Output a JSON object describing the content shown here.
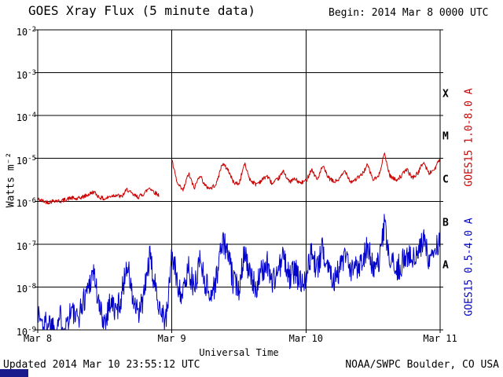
{
  "header": {
    "title": "GOES Xray Flux (5 minute data)",
    "begin_label": "Begin:  2014 Mar 8 0000 UTC"
  },
  "footer": {
    "updated": "Updated 2014 Mar 10 23:55:12 UTC",
    "source": "NOAA/SWPC Boulder, CO USA"
  },
  "chart_data": {
    "type": "line",
    "title": "GOES Xray Flux (5 minute data)",
    "xlabel": "Universal Time",
    "ylabel": "Watts m⁻²",
    "x_ticks": [
      "Mar 8",
      "Mar 9",
      "Mar 10",
      "Mar 11"
    ],
    "x_tick_hours": [
      0,
      24,
      48,
      72
    ],
    "x_range_hours": [
      0,
      72
    ],
    "y_log_range": [
      -9,
      -2
    ],
    "y_tick_exponents": [
      -2,
      -3,
      -4,
      -5,
      -6,
      -7,
      -8,
      -9
    ],
    "grid": "on",
    "sample_step_hours": 0.0833333,
    "flare_classes": [
      {
        "label": "X",
        "log_center": -3.5
      },
      {
        "label": "M",
        "log_center": -4.5
      },
      {
        "label": "C",
        "log_center": -5.5
      },
      {
        "label": "B",
        "log_center": -6.5
      },
      {
        "label": "A",
        "log_center": -7.5
      }
    ],
    "series": [
      {
        "name": "GOES15 1.0-8.0 A",
        "color": "#cc0000",
        "step_hours": 1,
        "noise_log": 0.05,
        "seed": 42,
        "gaps_hours": [
          [
            21.7,
            23.95
          ]
        ],
        "log_values": [
          -5.95,
          -6.0,
          -6.02,
          -5.98,
          -6.0,
          -5.96,
          -5.92,
          -5.95,
          -5.9,
          -5.85,
          -5.78,
          -5.9,
          -5.95,
          -5.88,
          -5.85,
          -5.9,
          -5.72,
          -5.85,
          -5.9,
          -5.82,
          -5.68,
          -5.8,
          -5.88,
          -5.9,
          -5.05,
          -5.6,
          -5.75,
          -5.35,
          -5.7,
          -5.38,
          -5.65,
          -5.7,
          -5.58,
          -5.12,
          -5.25,
          -5.55,
          -5.6,
          -5.12,
          -5.5,
          -5.6,
          -5.52,
          -5.4,
          -5.6,
          -5.48,
          -5.3,
          -5.55,
          -5.48,
          -5.58,
          -5.52,
          -5.25,
          -5.5,
          -5.18,
          -5.45,
          -5.55,
          -5.48,
          -5.28,
          -5.55,
          -5.48,
          -5.38,
          -5.15,
          -5.5,
          -5.42,
          -4.88,
          -5.4,
          -5.5,
          -5.42,
          -5.25,
          -5.45,
          -5.35,
          -5.08,
          -5.35,
          -5.25,
          -5.0
        ]
      },
      {
        "name": "GOES15 0.5-4.0 A",
        "color": "#0000cc",
        "step_hours": 1,
        "noise_log": 0.32,
        "seed": 1337,
        "gaps_hours": [],
        "log_values": [
          -8.6,
          -8.9,
          -8.8,
          -8.95,
          -8.7,
          -8.9,
          -8.5,
          -8.8,
          -8.4,
          -8.0,
          -7.6,
          -8.5,
          -8.8,
          -8.3,
          -8.6,
          -8.2,
          -7.4,
          -8.3,
          -8.7,
          -8.2,
          -7.3,
          -8.0,
          -8.5,
          -8.8,
          -7.2,
          -7.9,
          -8.2,
          -7.5,
          -8.1,
          -7.3,
          -7.9,
          -8.2,
          -7.8,
          -6.9,
          -7.2,
          -7.9,
          -8.0,
          -7.1,
          -7.8,
          -8.0,
          -7.7,
          -7.4,
          -7.9,
          -7.6,
          -7.3,
          -7.8,
          -7.6,
          -7.9,
          -7.7,
          -7.2,
          -7.6,
          -7.1,
          -7.5,
          -7.8,
          -7.6,
          -7.3,
          -7.7,
          -7.5,
          -7.4,
          -7.0,
          -7.6,
          -7.5,
          -6.6,
          -7.4,
          -7.6,
          -7.5,
          -7.2,
          -7.4,
          -7.3,
          -6.9,
          -7.3,
          -7.2,
          -6.9
        ]
      }
    ]
  }
}
